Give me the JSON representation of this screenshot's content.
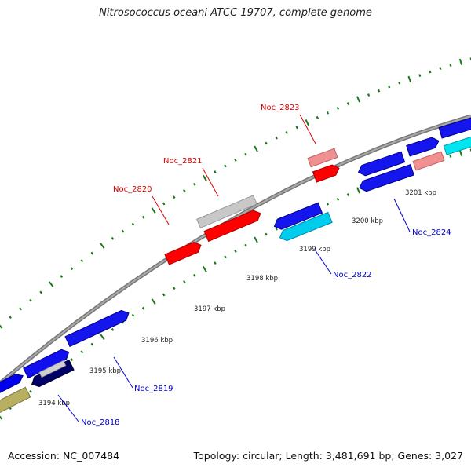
{
  "title": "Nitrosococcus oceani ATCC 19707, complete genome",
  "footer": {
    "accession": "Accession: NC_007484",
    "topology": "Topology: circular; Length: 3,481,691 bp; Genes: 3,027"
  },
  "colors": {
    "backbone": "#888888",
    "forward_tick": "#1a7a1a",
    "reverse_tick": "#1a7a1a",
    "label_red": "#dd0000",
    "label_blue": "#0000cc"
  },
  "kbp_ticks": [
    {
      "label": "3194 kbp"
    },
    {
      "label": "3195 kbp"
    },
    {
      "label": "3196 kbp"
    },
    {
      "label": "3197 kbp"
    },
    {
      "label": "3198 kbp"
    },
    {
      "label": "3199 kbp"
    },
    {
      "label": "3200 kbp"
    },
    {
      "label": "3201 kbp"
    }
  ],
  "gene_labels": [
    {
      "name": "Noc_2820",
      "color": "#dd0000"
    },
    {
      "name": "Noc_2821",
      "color": "#dd0000"
    },
    {
      "name": "Noc_2823",
      "color": "#dd0000"
    },
    {
      "name": "Noc_2818",
      "color": "#0000cc"
    },
    {
      "name": "Noc_2819",
      "color": "#0000cc"
    },
    {
      "name": "Noc_2822",
      "color": "#0000cc"
    },
    {
      "name": "Noc_2824",
      "color": "#0000cc"
    }
  ]
}
